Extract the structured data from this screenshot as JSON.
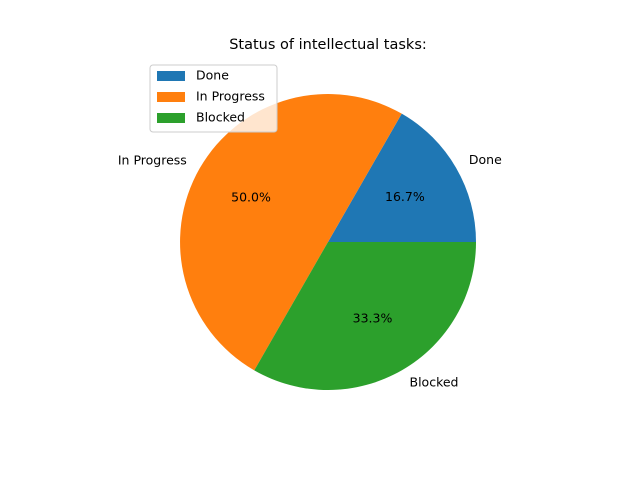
{
  "chart_data": {
    "type": "pie",
    "title": "Status of intellectual tasks:",
    "categories": [
      "Done",
      "In Progress",
      "Blocked"
    ],
    "values": [
      16.7,
      50.0,
      33.3
    ],
    "percent_labels": [
      "16.7%",
      "50.0%",
      "33.3%"
    ],
    "colors": [
      "#1f77b4",
      "#ff7f0e",
      "#2ca02c"
    ],
    "start_angle_deg": 0,
    "direction": "counterclockwise",
    "legend": {
      "placement": "upper-left",
      "entries": [
        "Done",
        "In Progress",
        "Blocked"
      ]
    }
  }
}
